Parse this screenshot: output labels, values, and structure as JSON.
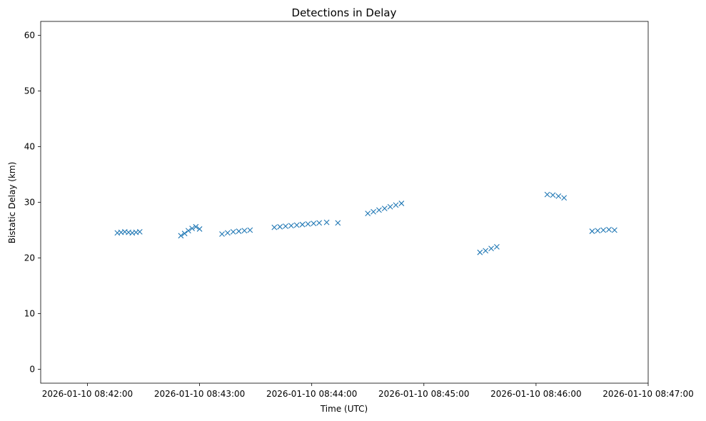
{
  "chart_data": {
    "type": "scatter",
    "title": "Detections in Delay",
    "xlabel": "Time (UTC)",
    "ylabel": "Bistatic Delay (km)",
    "x_ticks": [
      "2026-01-10 08:42:00",
      "2026-01-10 08:43:00",
      "2026-01-10 08:44:00",
      "2026-01-10 08:45:00",
      "2026-01-10 08:46:00",
      "2026-01-10 08:47:00"
    ],
    "y_ticks": [
      0,
      10,
      20,
      30,
      40,
      50,
      60
    ],
    "xlim": [
      "2026-01-10 08:41:35",
      "2026-01-10 08:47:00"
    ],
    "ylim": [
      -2.5,
      62.5
    ],
    "marker": "x",
    "color": "#1f77b4",
    "grid": false,
    "series": [
      {
        "x": [
          "2026-01-10 08:42:16",
          "2026-01-10 08:42:18",
          "2026-01-10 08:42:20",
          "2026-01-10 08:42:22",
          "2026-01-10 08:42:24",
          "2026-01-10 08:42:26",
          "2026-01-10 08:42:28",
          "2026-01-10 08:42:50",
          "2026-01-10 08:42:52",
          "2026-01-10 08:42:54",
          "2026-01-10 08:42:56",
          "2026-01-10 08:42:58",
          "2026-01-10 08:43:00",
          "2026-01-10 08:43:12",
          "2026-01-10 08:43:15",
          "2026-01-10 08:43:18",
          "2026-01-10 08:43:21",
          "2026-01-10 08:43:24",
          "2026-01-10 08:43:27",
          "2026-01-10 08:43:40",
          "2026-01-10 08:43:43",
          "2026-01-10 08:43:46",
          "2026-01-10 08:43:49",
          "2026-01-10 08:43:52",
          "2026-01-10 08:43:55",
          "2026-01-10 08:43:58",
          "2026-01-10 08:44:01",
          "2026-01-10 08:44:04",
          "2026-01-10 08:44:08",
          "2026-01-10 08:44:14",
          "2026-01-10 08:44:30",
          "2026-01-10 08:44:33",
          "2026-01-10 08:44:36",
          "2026-01-10 08:44:39",
          "2026-01-10 08:44:42",
          "2026-01-10 08:44:45",
          "2026-01-10 08:44:48",
          "2026-01-10 08:45:30",
          "2026-01-10 08:45:33",
          "2026-01-10 08:45:36",
          "2026-01-10 08:45:39",
          "2026-01-10 08:46:06",
          "2026-01-10 08:46:09",
          "2026-01-10 08:46:12",
          "2026-01-10 08:46:15",
          "2026-01-10 08:46:30",
          "2026-01-10 08:46:33",
          "2026-01-10 08:46:36",
          "2026-01-10 08:46:39",
          "2026-01-10 08:46:42"
        ],
        "y": [
          24.5,
          24.6,
          24.7,
          24.6,
          24.5,
          24.6,
          24.7,
          24.0,
          24.4,
          24.9,
          25.3,
          25.6,
          25.2,
          24.3,
          24.5,
          24.7,
          24.8,
          24.9,
          25.0,
          25.5,
          25.6,
          25.7,
          25.8,
          25.9,
          26.0,
          26.1,
          26.2,
          26.3,
          26.4,
          26.3,
          28.0,
          28.3,
          28.6,
          28.9,
          29.2,
          29.5,
          29.8,
          21.0,
          21.3,
          21.7,
          22.0,
          31.4,
          31.3,
          31.1,
          30.8,
          24.8,
          24.9,
          25.0,
          25.1,
          25.0
        ]
      }
    ]
  }
}
